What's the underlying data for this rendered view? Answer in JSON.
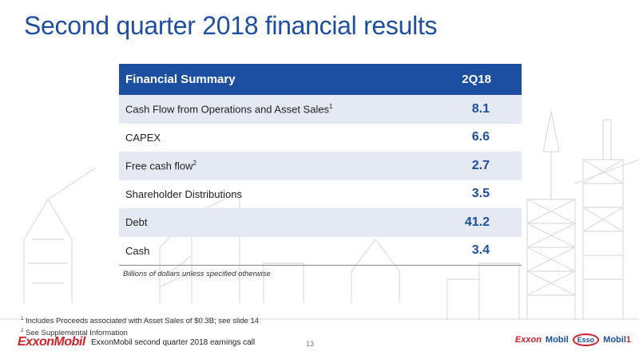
{
  "slide": {
    "title": "Second quarter 2018 financial results",
    "page_number": "13"
  },
  "table": {
    "header": {
      "label": "Financial Summary",
      "period": "2Q18"
    },
    "rows": [
      {
        "label": "Cash Flow from Operations and Asset Sales",
        "sup": "1",
        "value": "8.1"
      },
      {
        "label": "CAPEX",
        "sup": "",
        "value": "6.6"
      },
      {
        "label": "Free cash flow",
        "sup": "2",
        "value": "2.7"
      },
      {
        "label": "Shareholder Distributions",
        "sup": "",
        "value": "3.5"
      },
      {
        "label": "Debt",
        "sup": "",
        "value": "41.2"
      },
      {
        "label": "Cash",
        "sup": "",
        "value": "3.4"
      }
    ],
    "units_note": "Billions of dollars unless specified otherwise"
  },
  "footnotes": [
    {
      "mark": "1",
      "text": "Includes Proceeds associated with Asset Sales of $0.3B; see slide 14"
    },
    {
      "mark": "2",
      "text": "See Supplemental Information"
    }
  ],
  "footer": {
    "logo_text": "ExxonMobil",
    "call_text": "ExxonMobil second quarter 2018 earnings call",
    "brands": {
      "exxon": "Exxon",
      "mobil": "Mobil",
      "esso": "Esso",
      "mobil1": "Mobil",
      "mobil1_num": "1"
    }
  },
  "colors": {
    "accent_blue": "#1d4fa0",
    "row_shade": "#e4e9f2",
    "brand_red": "#d2232a"
  }
}
